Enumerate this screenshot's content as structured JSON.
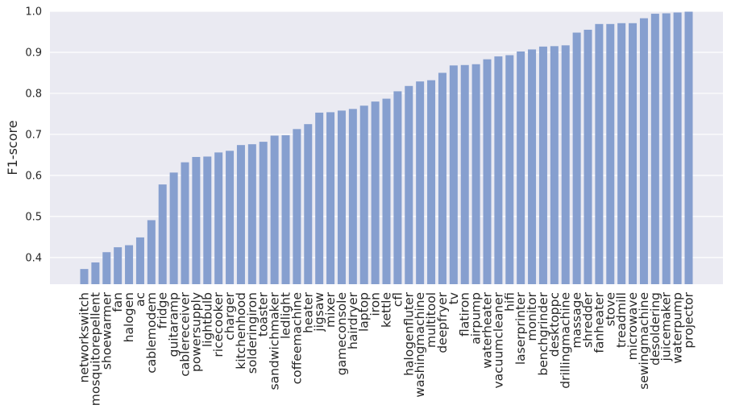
{
  "chart_data": {
    "type": "bar",
    "title": "",
    "xlabel": "",
    "ylabel": "F1-score",
    "ylim": [
      0.335,
      1.0
    ],
    "yticks": [
      "0.4",
      "0.5",
      "0.6",
      "0.7",
      "0.8",
      "0.9",
      "1.0"
    ],
    "grid": true,
    "colors": {
      "bar": "#869fcf",
      "background": "#eaeaf2",
      "grid": "#ffffff",
      "text": "#262626"
    },
    "categories": [
      "networkswitch",
      "mosquitorepellent",
      "shoewarmer",
      "fan",
      "halogen",
      "ac",
      "cablemodem",
      "fridge",
      "guitaramp",
      "cablereceiver",
      "powersupply",
      "lightbulb",
      "ricecooker",
      "charger",
      "kitchenhood",
      "solderingiron",
      "toaster",
      "sandwichmaker",
      "ledlight",
      "coffeemachine",
      "heater",
      "jigsaw",
      "mixer",
      "gameconsole",
      "hairdryer",
      "laptop",
      "iron",
      "kettle",
      "cfl",
      "halogenfluter",
      "washingmachine",
      "multitool",
      "deepfryer",
      "tv",
      "flatiron",
      "airpump",
      "waterheater",
      "vacuumcleaner",
      "hifi",
      "laserprinter",
      "monitor",
      "benchgrinder",
      "desktoppc",
      "drillingmachine",
      "massage",
      "shredder",
      "fanheater",
      "stove",
      "treadmill",
      "microwave",
      "sewingmachine",
      "desoldering",
      "juicemaker",
      "waterpump",
      "projector"
    ],
    "values": [
      0.372,
      0.388,
      0.413,
      0.425,
      0.43,
      0.449,
      0.491,
      0.578,
      0.607,
      0.632,
      0.645,
      0.646,
      0.656,
      0.66,
      0.674,
      0.676,
      0.682,
      0.697,
      0.698,
      0.713,
      0.725,
      0.753,
      0.754,
      0.758,
      0.762,
      0.77,
      0.78,
      0.787,
      0.805,
      0.818,
      0.829,
      0.832,
      0.85,
      0.868,
      0.869,
      0.871,
      0.883,
      0.89,
      0.893,
      0.902,
      0.907,
      0.914,
      0.915,
      0.917,
      0.948,
      0.955,
      0.969,
      0.969,
      0.971,
      0.971,
      0.983,
      0.994,
      0.995,
      0.997,
      0.999
    ]
  }
}
